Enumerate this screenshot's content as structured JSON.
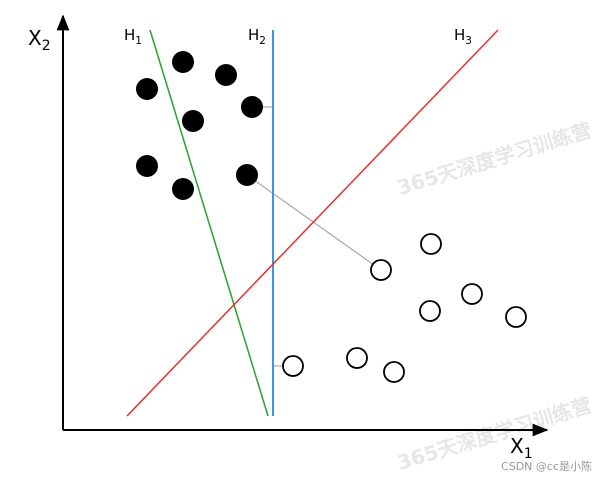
{
  "axes": {
    "x": {
      "base": "X",
      "sub": "1"
    },
    "y": {
      "base": "X",
      "sub": "2"
    }
  },
  "hyperplanes": [
    {
      "base": "H",
      "sub": "1"
    },
    {
      "base": "H",
      "sub": "2"
    },
    {
      "base": "H",
      "sub": "3"
    }
  ],
  "watermark": {
    "text": "365天深度学习训练营",
    "credit": "CSDN @cc是小陈"
  }
}
